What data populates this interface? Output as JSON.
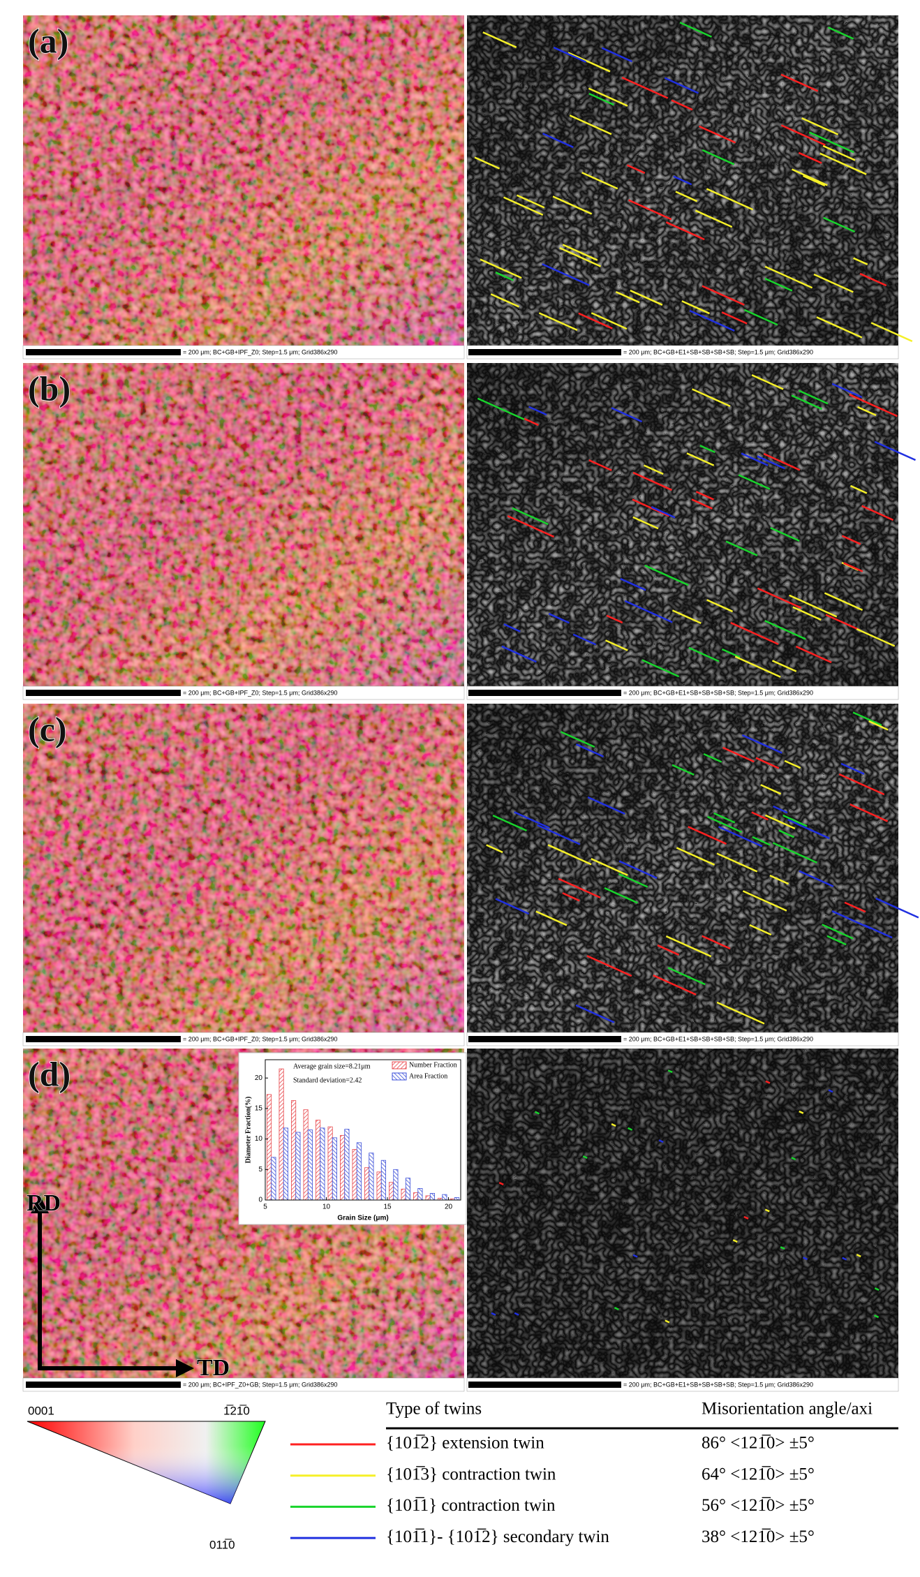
{
  "panels": [
    {
      "label": "(a)",
      "left_caption": "= 200 μm; BC+GB+IPF_Z0; Step=1.5 μm; Grid386x290",
      "right_caption": "= 200 μm; BC+GB+E1+SB+SB+SB+SB; Step=1.5 μm; Grid386x290"
    },
    {
      "label": "(b)",
      "left_caption": "= 200 μm; BC+GB+IPF_Z0; Step=1.5 μm; Grid386x290",
      "right_caption": "= 200 μm; BC+GB+E1+SB+SB+SB+SB; Step=1.5 μm; Grid386x290"
    },
    {
      "label": "(c)",
      "left_caption": "= 200 μm; BC+GB+IPF_Z0; Step=1.5 μm; Grid386x290",
      "right_caption": "= 200 μm; BC+GB+E1+SB+SB+SB+SB; Step=1.5 μm; Grid386x290"
    },
    {
      "label": "(d)",
      "left_caption": "= 200 μm; BC+IPF_Z0+GB; Step=1.5 μm; Grid386x290",
      "right_caption": "= 200 μm; BC+GB+E1+SB+SB+SB+SB; Step=1.5 μm; Grid386x290"
    }
  ],
  "directions": {
    "rd": "RD",
    "td": "TD"
  },
  "chart_data": {
    "type": "bar",
    "x_label": "Grain Size (μm)",
    "y_label": "Diameter Fraction(%)",
    "annotations": [
      "Average grain size=8.21μm",
      "Standard deviation=2.42"
    ],
    "x": [
      5.5,
      6.5,
      7.5,
      8.5,
      9.5,
      10.5,
      11.5,
      12.5,
      13.5,
      14.5,
      15.5,
      16.5,
      17.5,
      18.5,
      19.5,
      20.5
    ],
    "series": [
      {
        "name": "Number Fraction",
        "color": "#e8474c",
        "values": [
          17.3,
          21.5,
          16.3,
          14.8,
          13.1,
          12.0,
          10.6,
          8.3,
          5.3,
          4.6,
          2.9,
          1.8,
          1.2,
          0.7,
          0.3,
          0.2
        ]
      },
      {
        "name": "Area Fraction",
        "color": "#3b4fd8",
        "values": [
          7.0,
          11.8,
          11.1,
          11.5,
          11.8,
          10.2,
          11.6,
          9.4,
          7.7,
          6.5,
          5.0,
          3.6,
          1.9,
          1.1,
          0.9,
          0.4
        ]
      }
    ],
    "xlim": [
      5,
      21
    ],
    "xticks": [
      5,
      10,
      15,
      20
    ],
    "ylim": [
      0,
      23
    ],
    "yticks": [
      0,
      5,
      10,
      15,
      20
    ]
  },
  "ipf_legend": {
    "corners": [
      "0001",
      "1̅21̅0",
      "011̅0"
    ]
  },
  "twin_table": {
    "header": [
      "Type of twins",
      "Misorientation angle/axi"
    ],
    "rows": [
      {
        "color": "#ff2020",
        "type": "{101̅2} extension twin",
        "angle": "86° <121̅0> ±5°"
      },
      {
        "color": "#f5f028",
        "type": "{101̅3} contraction twin",
        "angle": "64° <121̅0> ±5°"
      },
      {
        "color": "#18d42c",
        "type": "{101̅1} contraction twin",
        "angle": "56° <121̅0> ±5°"
      },
      {
        "color": "#2030e0",
        "type": "{101̅1}- {101̅2} secondary twin",
        "angle": "38° <121̅0> ±5°"
      }
    ]
  }
}
